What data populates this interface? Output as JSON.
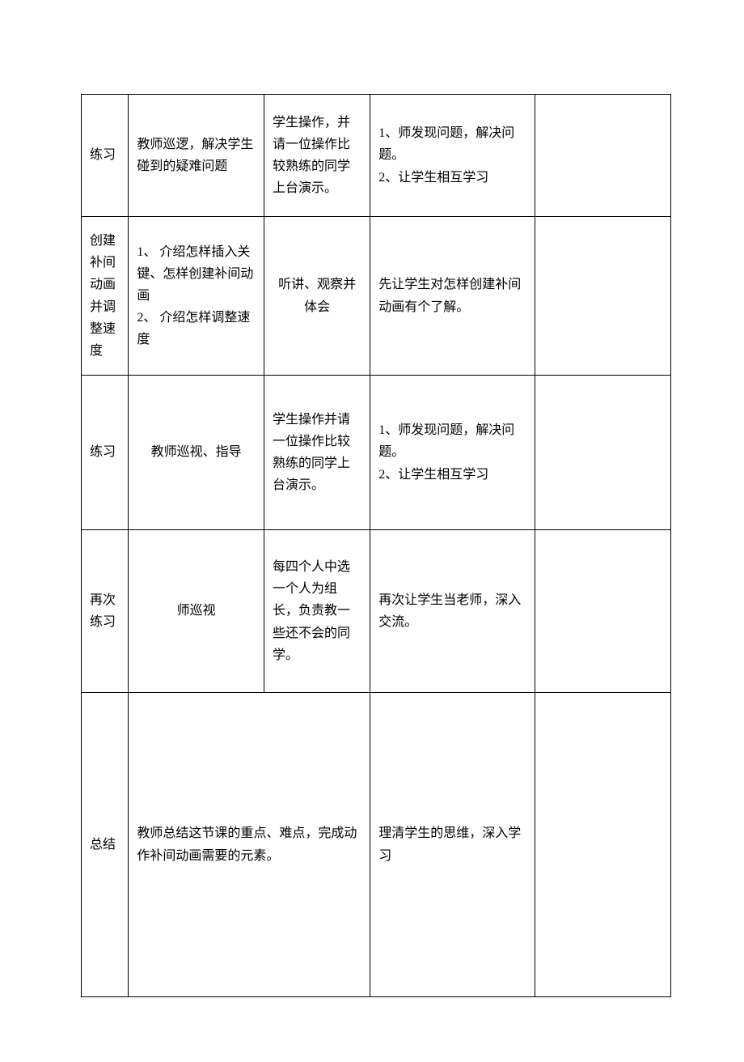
{
  "rows": [
    {
      "c0": "练习",
      "c1": "教师巡逻，解决学生碰到的疑难问题",
      "c2": "学生操作，并请一位操作比较熟练的同学上台演示。",
      "c3": "1、师发现问题，解决问题。\n2、让学生相互学习",
      "c4": ""
    },
    {
      "c0": "创建补间动画并调整速度",
      "c1": "1、 介绍怎样插入关键、怎样创建补间动画\n2、 介绍怎样调整速  度",
      "c2": "听讲、观察并体会",
      "c3": "先让学生对怎样创建补间动画有个了解。",
      "c4": ""
    },
    {
      "c0": "练习",
      "c1": "教师巡视、指导",
      "c2": "学生操作并请一位操作比较熟练的同学上台演示。",
      "c3": "1、师发现问题，解决问题。\n2、让学生相互学习",
      "c4": ""
    },
    {
      "c0": "再次练习",
      "c1": "师巡视",
      "c2": "每四个人中选一个人为组长，负责教一些还不会的同学。",
      "c3": "再次让学生当老师，深入交流。",
      "c4": ""
    },
    {
      "c0": "总结",
      "c12": "教师总结这节课的重点、难点，完成动作补间动画需要的元素。",
      "c3": "理清学生的思维，深入学习",
      "c4": ""
    }
  ]
}
